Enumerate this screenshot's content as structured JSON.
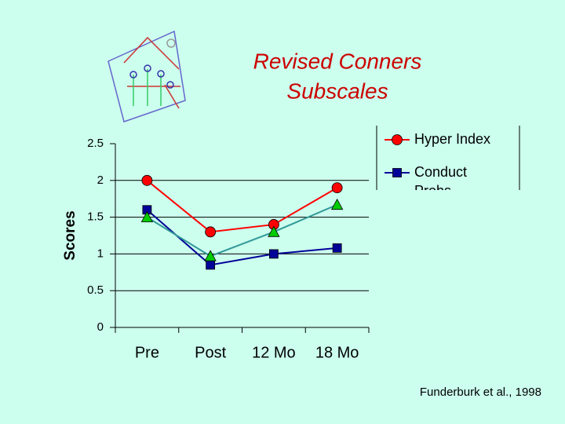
{
  "chart_data": {
    "type": "line",
    "title_lines": [
      "Revised Conners",
      "Subscales"
    ],
    "ylabel": "Scores",
    "categories": [
      "Pre",
      "Post",
      "12 Mo",
      "18 Mo"
    ],
    "series": [
      {
        "name": "Hyper Index",
        "color": "#ff0000",
        "marker": "circle",
        "values": [
          2,
          1.3,
          1.4,
          1.9
        ]
      },
      {
        "name": "Conduct Probs",
        "color": "#000099",
        "marker": "square",
        "values": [
          1.6,
          0.85,
          1.0,
          1.08
        ]
      },
      {
        "color": "#00cc00",
        "line_color": "#339999",
        "marker": "triangle",
        "values": [
          1.5,
          0.97,
          1.3,
          1.67
        ]
      }
    ],
    "ylim": [
      0,
      2.5
    ],
    "yticks": [
      0,
      0.5,
      1,
      1.5,
      2,
      2.5
    ],
    "grid": true,
    "source": "Funderburk et al., 1998"
  }
}
